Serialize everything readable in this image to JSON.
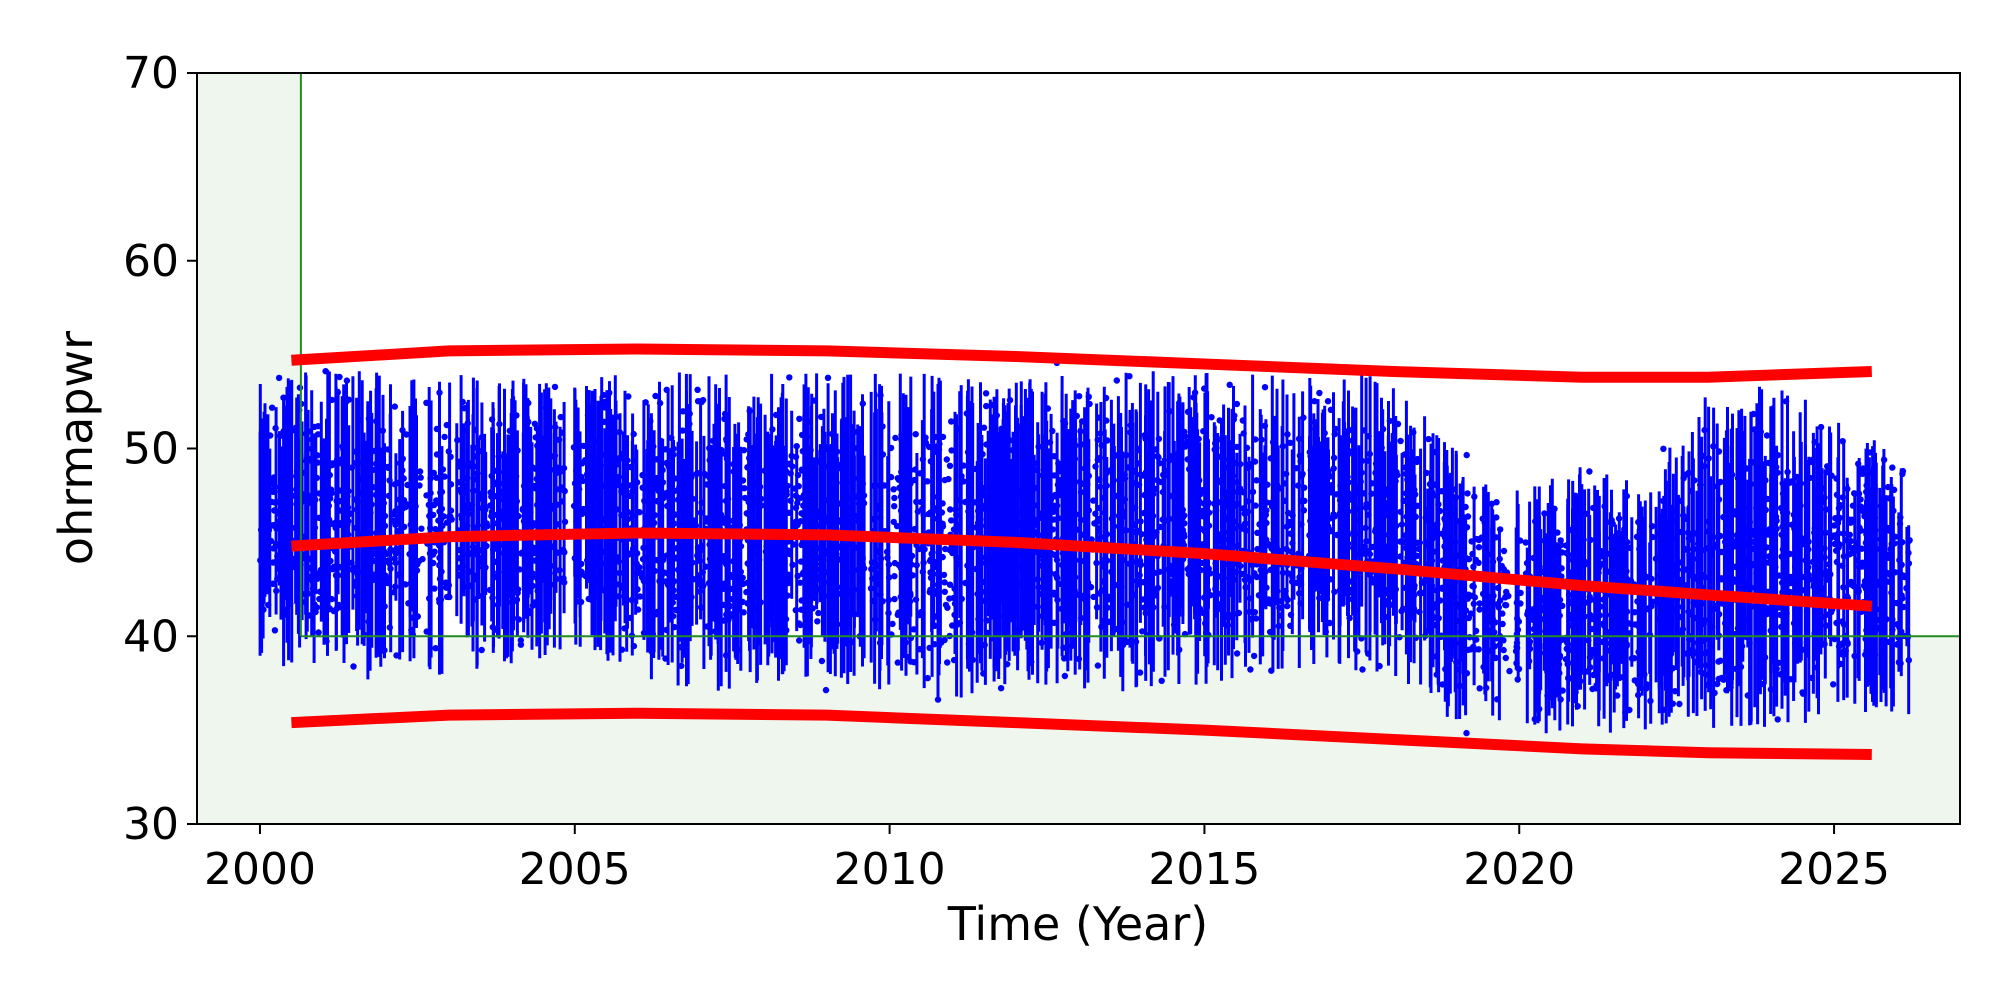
{
  "chart_data": {
    "type": "scatter",
    "xlabel": "Time (Year)",
    "ylabel": "ohrmapwr",
    "xlim": [
      1999,
      2027
    ],
    "ylim": [
      30,
      70
    ],
    "xticks": [
      2000,
      2005,
      2010,
      2015,
      2020,
      2025
    ],
    "yticks": [
      30,
      40,
      50,
      60,
      70
    ],
    "grid": false,
    "colors": {
      "points": "#0000ff",
      "fit": "#ff0000",
      "limit": "#228B22",
      "shade": "#eef6ee"
    },
    "limits": {
      "x_start": 2000.65,
      "y_lower": 40
    },
    "scatter_envelope": [
      {
        "x": 2000.0,
        "min": 37.8,
        "max": 54.8
      },
      {
        "x": 2001.0,
        "min": 37.0,
        "max": 55.1
      },
      {
        "x": 2002.0,
        "min": 36.5,
        "max": 55.0
      },
      {
        "x": 2003.0,
        "min": 37.0,
        "max": 55.0
      },
      {
        "x": 2004.0,
        "min": 37.5,
        "max": 54.5
      },
      {
        "x": 2005.0,
        "min": 38.5,
        "max": 55.0
      },
      {
        "x": 2006.0,
        "min": 37.0,
        "max": 55.1
      },
      {
        "x": 2007.0,
        "min": 36.0,
        "max": 55.0
      },
      {
        "x": 2008.0,
        "min": 36.5,
        "max": 55.0
      },
      {
        "x": 2009.0,
        "min": 36.5,
        "max": 55.0
      },
      {
        "x": 2010.0,
        "min": 36.0,
        "max": 55.0
      },
      {
        "x": 2011.0,
        "min": 35.5,
        "max": 55.0
      },
      {
        "x": 2012.0,
        "min": 36.5,
        "max": 54.5
      },
      {
        "x": 2013.0,
        "min": 36.0,
        "max": 55.1
      },
      {
        "x": 2014.0,
        "min": 36.0,
        "max": 55.1
      },
      {
        "x": 2015.0,
        "min": 36.5,
        "max": 55.0
      },
      {
        "x": 2016.0,
        "min": 37.0,
        "max": 55.0
      },
      {
        "x": 2017.0,
        "min": 37.5,
        "max": 55.0
      },
      {
        "x": 2018.0,
        "min": 37.0,
        "max": 54.8
      },
      {
        "x": 2019.0,
        "min": 34.5,
        "max": 51.0
      },
      {
        "x": 2020.0,
        "min": 34.0,
        "max": 48.5
      },
      {
        "x": 2021.0,
        "min": 34.0,
        "max": 50.0
      },
      {
        "x": 2022.0,
        "min": 34.0,
        "max": 49.0
      },
      {
        "x": 2023.0,
        "min": 34.0,
        "max": 54.0
      },
      {
        "x": 2024.0,
        "min": 34.0,
        "max": 54.5
      },
      {
        "x": 2025.0,
        "min": 34.5,
        "max": 53.0
      },
      {
        "x": 2026.2,
        "min": 35.0,
        "max": 50.0
      }
    ],
    "fit_lines": [
      {
        "x": [
          2000.5,
          2003,
          2006,
          2009,
          2012,
          2015,
          2018,
          2021,
          2023,
          2025.6
        ],
        "y": [
          54.7,
          55.2,
          55.3,
          55.2,
          54.9,
          54.5,
          54.1,
          53.8,
          53.8,
          54.1
        ]
      },
      {
        "x": [
          2000.5,
          2003,
          2006,
          2009,
          2012,
          2015,
          2018,
          2021,
          2023,
          2025.6
        ],
        "y": [
          44.8,
          45.3,
          45.5,
          45.4,
          45.0,
          44.4,
          43.6,
          42.7,
          42.2,
          41.6
        ]
      },
      {
        "x": [
          2000.5,
          2003,
          2006,
          2009,
          2012,
          2015,
          2018,
          2021,
          2023,
          2025.6
        ],
        "y": [
          35.4,
          35.8,
          35.9,
          35.8,
          35.4,
          35.0,
          34.5,
          34.0,
          33.8,
          33.7
        ]
      }
    ]
  }
}
